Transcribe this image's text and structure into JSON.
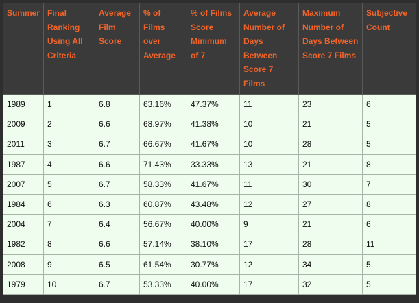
{
  "table": {
    "headers": [
      "Summer",
      "Final Ranking Using All Criteria",
      "Average Film Score",
      "% of Films over Average",
      "% of Films Score Minimum of 7",
      "Average Number of Days Between Score 7 Films",
      "Maximum Number of Days Between Score 7 Films",
      "Subjective Count"
    ],
    "rows": [
      [
        "1989",
        "1",
        "6.8",
        "63.16%",
        "47.37%",
        "11",
        "23",
        "6"
      ],
      [
        "2009",
        "2",
        "6.6",
        "68.97%",
        "41.38%",
        "10",
        "21",
        "5"
      ],
      [
        "2011",
        "3",
        "6.7",
        "66.67%",
        "41.67%",
        "10",
        "28",
        "5"
      ],
      [
        "1987",
        "4",
        "6.6",
        "71.43%",
        "33.33%",
        "13",
        "21",
        "8"
      ],
      [
        "2007",
        "5",
        "6.7",
        "58.33%",
        "41.67%",
        "11",
        "30",
        "7"
      ],
      [
        "1984",
        "6",
        "6.3",
        "60.87%",
        "43.48%",
        "12",
        "27",
        "8"
      ],
      [
        "2004",
        "7",
        "6.4",
        "56.67%",
        "40.00%",
        "9",
        "21",
        "6"
      ],
      [
        "1982",
        "8",
        "6.6",
        "57.14%",
        "38.10%",
        "17",
        "28",
        "11"
      ],
      [
        "2008",
        "9",
        "6.5",
        "61.54%",
        "30.77%",
        "12",
        "34",
        "5"
      ],
      [
        "1979",
        "10",
        "6.7",
        "53.33%",
        "40.00%",
        "17",
        "32",
        "5"
      ]
    ]
  }
}
